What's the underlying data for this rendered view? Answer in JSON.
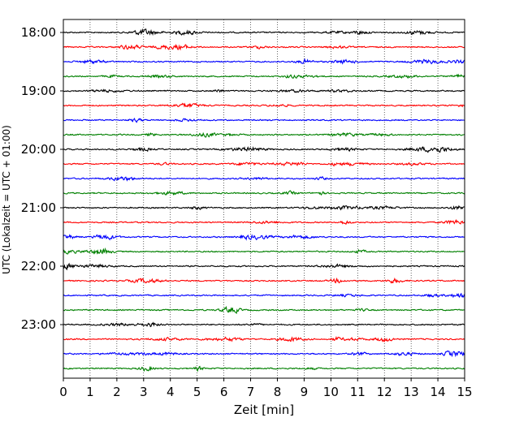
{
  "chart_data": {
    "type": "line",
    "xlabel": "Zeit  [min]",
    "ylabel": "UTC (Lokalzeit = UTC + 01:00)",
    "xlim": [
      0,
      15
    ],
    "x_ticks": [
      0,
      1,
      2,
      3,
      4,
      5,
      6,
      7,
      8,
      9,
      10,
      11,
      12,
      13,
      14,
      15
    ],
    "y_ticks": [
      {
        "label": "18:00",
        "trace": 0
      },
      {
        "label": "19:00",
        "trace": 4
      },
      {
        "label": "20:00",
        "trace": 8
      },
      {
        "label": "21:00",
        "trace": 12
      },
      {
        "label": "22:00",
        "trace": 16
      },
      {
        "label": "23:00",
        "trace": 20
      }
    ],
    "grid": "vertical dotted",
    "traces_per_hour": 4,
    "trace_minutes": 15,
    "trace_colors": [
      "#000000",
      "#ff0000",
      "#0000ff",
      "#008000"
    ],
    "traces": [
      {
        "start": "18:00"
      },
      {
        "start": "18:15"
      },
      {
        "start": "18:30"
      },
      {
        "start": "18:45"
      },
      {
        "start": "19:00"
      },
      {
        "start": "19:15"
      },
      {
        "start": "19:30"
      },
      {
        "start": "19:45"
      },
      {
        "start": "20:00"
      },
      {
        "start": "20:15"
      },
      {
        "start": "20:30"
      },
      {
        "start": "20:45"
      },
      {
        "start": "21:00"
      },
      {
        "start": "21:15"
      },
      {
        "start": "21:30"
      },
      {
        "start": "21:45"
      },
      {
        "start": "22:00"
      },
      {
        "start": "22:15"
      },
      {
        "start": "22:30"
      },
      {
        "start": "22:45"
      },
      {
        "start": "23:00"
      },
      {
        "start": "23:15"
      },
      {
        "start": "23:30"
      },
      {
        "start": "23:45"
      }
    ]
  }
}
